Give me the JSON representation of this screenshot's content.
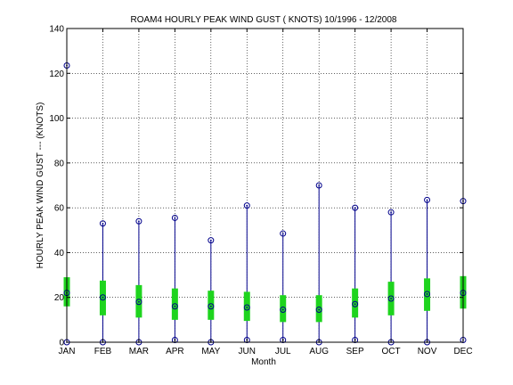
{
  "chart_data": {
    "type": "box",
    "title": "ROAM4  HOURLY PEAK WIND GUST ( KNOTS) 10/1996 - 12/2008",
    "xlabel": "Month",
    "ylabel": "HOURLY PEAK WIND GUST --- (KNOTS)",
    "ylim": [
      0,
      140
    ],
    "yticks": [
      "0",
      "20",
      "40",
      "60",
      "80",
      "100",
      "120",
      "140"
    ],
    "grid": true,
    "categories": [
      "JAN",
      "FEB",
      "MAR",
      "APR",
      "MAY",
      "JUN",
      "JUL",
      "AUG",
      "SEP",
      "OCT",
      "NOV",
      "DEC"
    ],
    "series": [
      {
        "min": [
          0,
          0,
          0,
          1,
          0,
          1,
          1,
          0,
          1,
          0,
          0,
          1
        ],
        "q1": [
          16,
          12,
          11,
          10,
          10,
          9.5,
          9,
          9,
          11,
          12,
          14,
          15
        ],
        "median": [
          22,
          20,
          18,
          16,
          16,
          15.5,
          14.5,
          14.5,
          17,
          19.5,
          21.5,
          22
        ],
        "q3": [
          29,
          27.5,
          25.5,
          24,
          23,
          22.5,
          21,
          21,
          24,
          27,
          28.5,
          29.5
        ],
        "max": [
          123.5,
          53,
          54,
          55.5,
          45.5,
          61,
          48.5,
          70,
          60,
          58,
          63.5,
          63
        ]
      }
    ],
    "colors": {
      "whisker": "#00008b",
      "box": "#1ed41e",
      "marker": "#00008b",
      "grid": "#000000"
    }
  }
}
